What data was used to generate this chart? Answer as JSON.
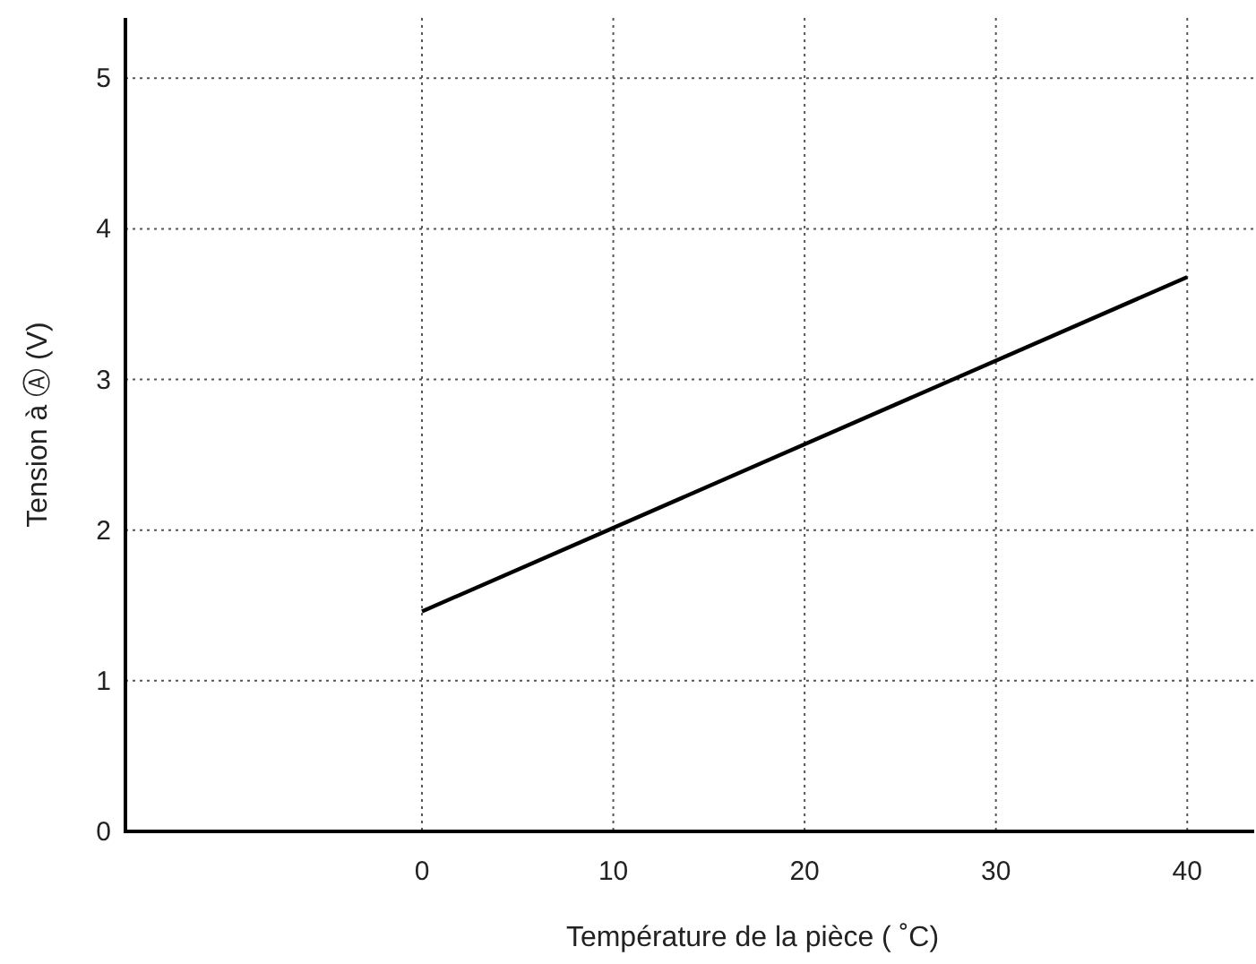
{
  "chart_data": {
    "type": "line",
    "xlabel": "Température de la pièce  ( ˚C)",
    "ylabel": "Tension à  Ⓐ (V)",
    "x": [
      0,
      40
    ],
    "series": [
      {
        "color": "#000000",
        "values": [
          1.46,
          3.68
        ]
      }
    ],
    "xlim": [
      -15.5,
      43.5
    ],
    "xticks": [
      0,
      10,
      20,
      30,
      40
    ],
    "ylim": [
      0,
      5.4
    ],
    "yticks": [
      0,
      1,
      2,
      3,
      4,
      5
    ],
    "grid": true,
    "marker": "none",
    "line_style": "solid"
  }
}
